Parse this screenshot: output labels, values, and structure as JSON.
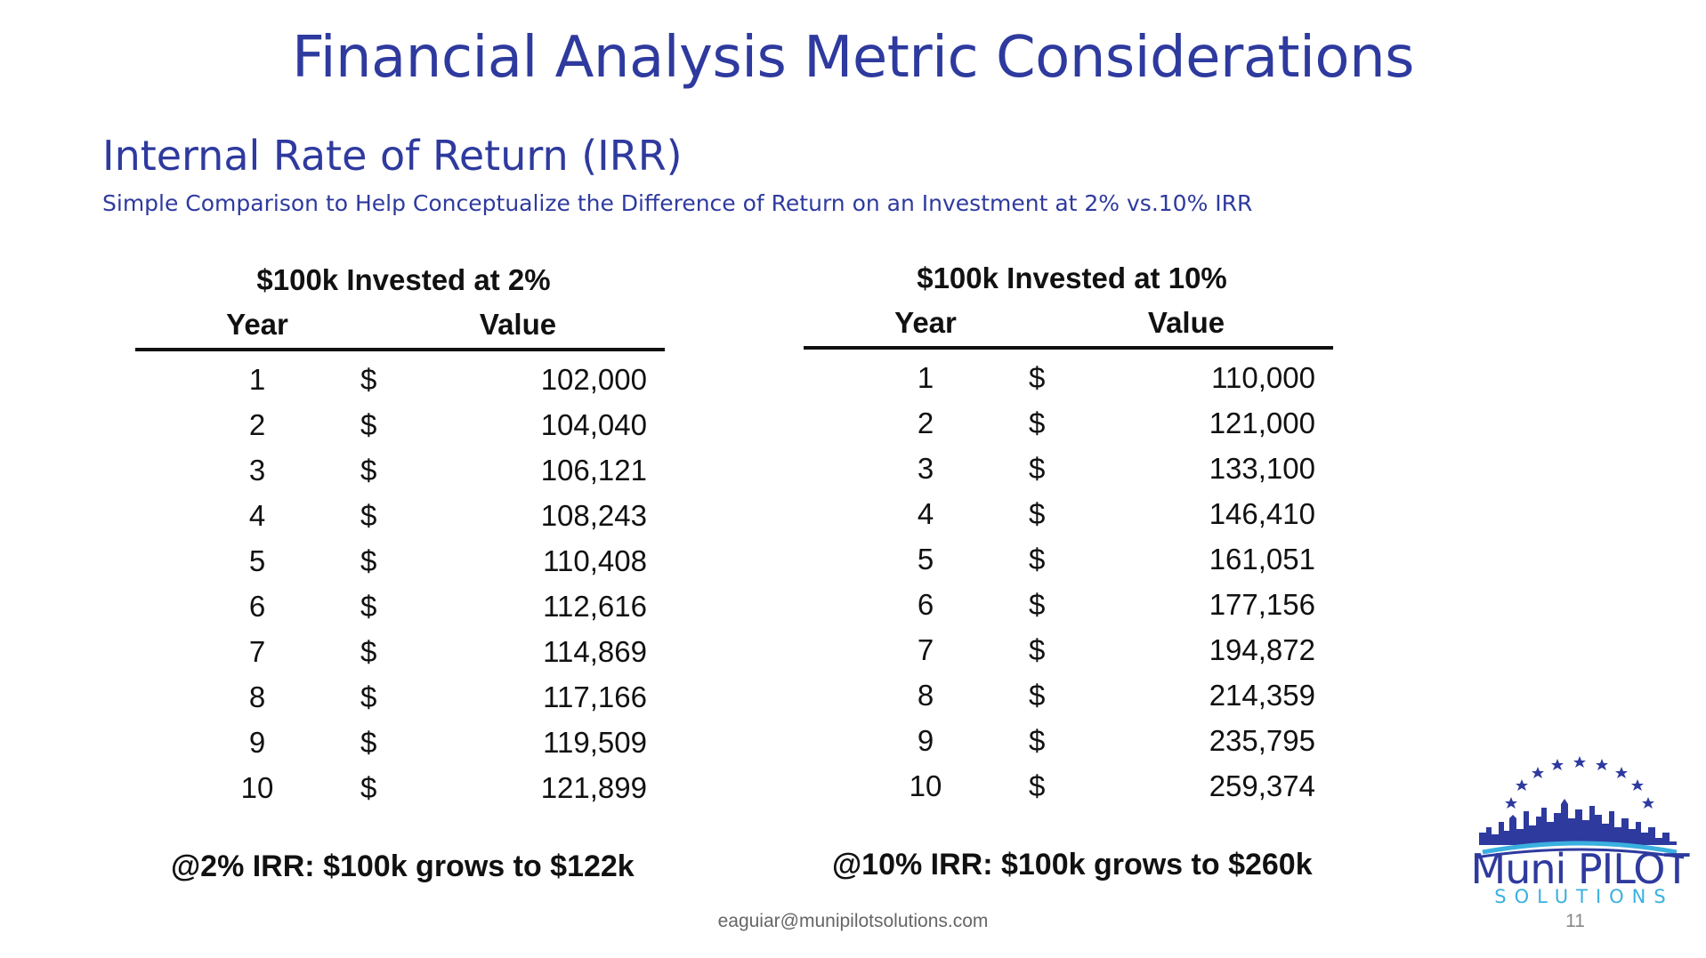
{
  "slide": {
    "title": "Financial Analysis Metric Considerations",
    "subtitle": "Internal Rate of Return (IRR)",
    "caption": "Simple Comparison to Help Conceptualize the Difference of Return on an Investment at 2% vs.10% IRR",
    "footer_email": "eaguiar@munipilotsolutions.com",
    "page_number": "11"
  },
  "table_2pct": {
    "title": "$100k Invested at 2%",
    "col_year": "Year",
    "col_value": "Value",
    "currency": "$",
    "rows": [
      {
        "year": "1",
        "value": "102,000"
      },
      {
        "year": "2",
        "value": "104,040"
      },
      {
        "year": "3",
        "value": "106,121"
      },
      {
        "year": "4",
        "value": "108,243"
      },
      {
        "year": "5",
        "value": "110,408"
      },
      {
        "year": "6",
        "value": "112,616"
      },
      {
        "year": "7",
        "value": "114,869"
      },
      {
        "year": "8",
        "value": "117,166"
      },
      {
        "year": "9",
        "value": "119,509"
      },
      {
        "year": "10",
        "value": "121,899"
      }
    ],
    "summary": "@2% IRR: $100k grows to $122k"
  },
  "table_10pct": {
    "title": "$100k Invested at 10%",
    "col_year": "Year",
    "col_value": "Value",
    "currency": "$",
    "rows": [
      {
        "year": "1",
        "value": "110,000"
      },
      {
        "year": "2",
        "value": "121,000"
      },
      {
        "year": "3",
        "value": "133,100"
      },
      {
        "year": "4",
        "value": "146,410"
      },
      {
        "year": "5",
        "value": "161,051"
      },
      {
        "year": "6",
        "value": "177,156"
      },
      {
        "year": "7",
        "value": "194,872"
      },
      {
        "year": "8",
        "value": "214,359"
      },
      {
        "year": "9",
        "value": "235,795"
      },
      {
        "year": "10",
        "value": "259,374"
      }
    ],
    "summary": "@10% IRR: $100k grows to $260k"
  },
  "logo": {
    "name": "Muni PILOT",
    "tagline": "SOLUTIONS",
    "primary_color": "#2e3a9e",
    "accent_color": "#3ab0e0"
  }
}
